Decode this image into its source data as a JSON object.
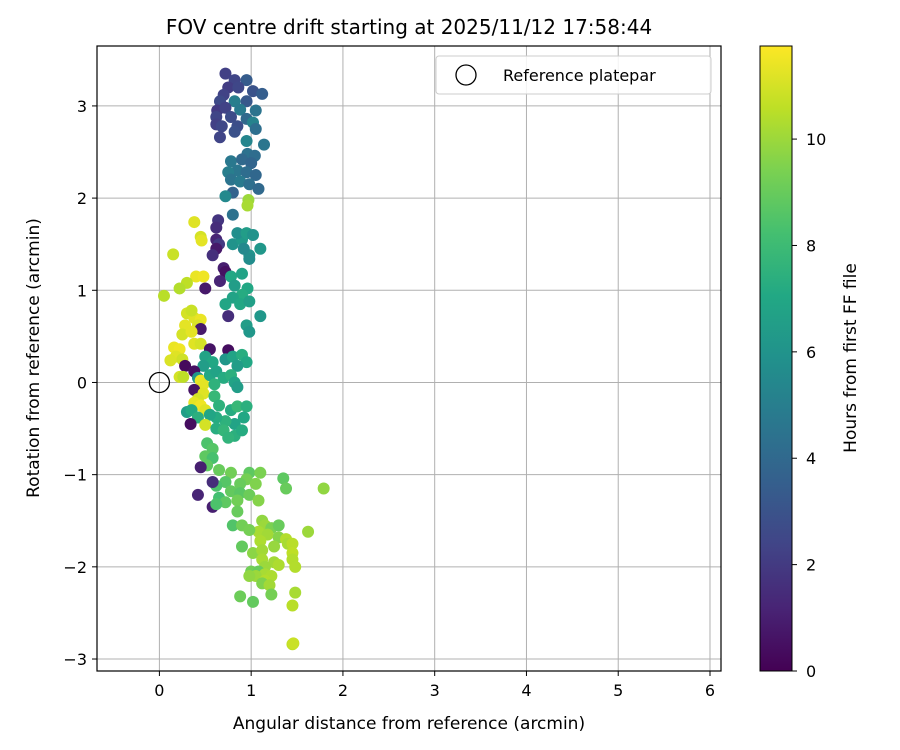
{
  "chart_data": {
    "type": "scatter",
    "title": "FOV centre drift starting at 2025/11/12 17:58:44",
    "xlabel": "Angular distance from reference (arcmin)",
    "ylabel": "Rotation from reference (arcmin)",
    "xlim": [
      -0.68,
      6.12
    ],
    "ylim": [
      -3.13,
      3.65
    ],
    "xticks": [
      0,
      1,
      2,
      3,
      4,
      5,
      6
    ],
    "yticks": [
      -3,
      -2,
      -1,
      0,
      1,
      2,
      3
    ],
    "grid": true,
    "legend": {
      "placement": "top-right",
      "entries": [
        "Reference platepar"
      ]
    },
    "reference_point": {
      "x": 0,
      "y": 0,
      "label": "Reference platepar"
    },
    "colorbar": {
      "label": "Hours from first FF file",
      "colormap": "viridis",
      "range": [
        0,
        11.75
      ],
      "ticks": [
        0,
        2,
        4,
        6,
        8,
        10
      ]
    },
    "points": [
      {
        "x": 0.72,
        "y": 3.35,
        "c": 2.2
      },
      {
        "x": 0.82,
        "y": 3.28,
        "c": 2.4
      },
      {
        "x": 0.95,
        "y": 3.28,
        "c": 3.4
      },
      {
        "x": 0.75,
        "y": 3.2,
        "c": 2.1
      },
      {
        "x": 0.86,
        "y": 3.2,
        "c": 2.5
      },
      {
        "x": 1.02,
        "y": 3.16,
        "c": 3.0
      },
      {
        "x": 1.12,
        "y": 3.13,
        "c": 3.5
      },
      {
        "x": 0.7,
        "y": 3.12,
        "c": 2.3
      },
      {
        "x": 0.66,
        "y": 3.05,
        "c": 2.6
      },
      {
        "x": 0.82,
        "y": 3.05,
        "c": 5.0
      },
      {
        "x": 0.95,
        "y": 3.05,
        "c": 3.2
      },
      {
        "x": 0.63,
        "y": 2.95,
        "c": 2.0
      },
      {
        "x": 0.72,
        "y": 2.98,
        "c": 2.3
      },
      {
        "x": 0.88,
        "y": 2.96,
        "c": 4.8
      },
      {
        "x": 1.05,
        "y": 2.95,
        "c": 4.5
      },
      {
        "x": 0.62,
        "y": 2.88,
        "c": 2.4
      },
      {
        "x": 0.78,
        "y": 2.88,
        "c": 2.7
      },
      {
        "x": 0.95,
        "y": 2.86,
        "c": 4.0
      },
      {
        "x": 1.02,
        "y": 2.82,
        "c": 5.2
      },
      {
        "x": 0.62,
        "y": 2.8,
        "c": 2.2
      },
      {
        "x": 0.68,
        "y": 2.78,
        "c": 2.5
      },
      {
        "x": 0.85,
        "y": 2.78,
        "c": 2.8
      },
      {
        "x": 1.05,
        "y": 2.75,
        "c": 4.3
      },
      {
        "x": 0.82,
        "y": 2.72,
        "c": 2.9
      },
      {
        "x": 0.66,
        "y": 2.66,
        "c": 2.4
      },
      {
        "x": 0.95,
        "y": 2.62,
        "c": 5.3
      },
      {
        "x": 1.14,
        "y": 2.58,
        "c": 4.6
      },
      {
        "x": 0.96,
        "y": 2.48,
        "c": 4.4
      },
      {
        "x": 1.04,
        "y": 2.46,
        "c": 4.2
      },
      {
        "x": 0.78,
        "y": 2.4,
        "c": 4.7
      },
      {
        "x": 0.9,
        "y": 2.42,
        "c": 4.0
      },
      {
        "x": 1.0,
        "y": 2.38,
        "c": 3.8
      },
      {
        "x": 0.85,
        "y": 2.3,
        "c": 4.6
      },
      {
        "x": 0.75,
        "y": 2.28,
        "c": 5.0
      },
      {
        "x": 0.95,
        "y": 2.28,
        "c": 4.2
      },
      {
        "x": 1.05,
        "y": 2.25,
        "c": 3.9
      },
      {
        "x": 0.78,
        "y": 2.2,
        "c": 4.5
      },
      {
        "x": 0.88,
        "y": 2.18,
        "c": 4.8
      },
      {
        "x": 0.98,
        "y": 2.15,
        "c": 4.3
      },
      {
        "x": 1.08,
        "y": 2.1,
        "c": 4.0
      },
      {
        "x": 0.8,
        "y": 2.06,
        "c": 3.7
      },
      {
        "x": 0.72,
        "y": 2.02,
        "c": 5.5
      },
      {
        "x": 0.97,
        "y": 1.98,
        "c": 10.0
      },
      {
        "x": 0.96,
        "y": 1.92,
        "c": 10.2
      },
      {
        "x": 0.8,
        "y": 1.82,
        "c": 4.4
      },
      {
        "x": 0.64,
        "y": 1.76,
        "c": 1.8
      },
      {
        "x": 0.62,
        "y": 1.68,
        "c": 1.5
      },
      {
        "x": 0.38,
        "y": 1.74,
        "c": 11.2
      },
      {
        "x": 0.45,
        "y": 1.58,
        "c": 11.0
      },
      {
        "x": 0.46,
        "y": 1.54,
        "c": 11.3
      },
      {
        "x": 0.62,
        "y": 1.55,
        "c": 1.2
      },
      {
        "x": 0.65,
        "y": 1.5,
        "c": 2.0
      },
      {
        "x": 0.62,
        "y": 1.45,
        "c": 0.8
      },
      {
        "x": 0.8,
        "y": 1.5,
        "c": 6.0
      },
      {
        "x": 0.9,
        "y": 1.55,
        "c": 6.3
      },
      {
        "x": 0.85,
        "y": 1.62,
        "c": 5.8
      },
      {
        "x": 0.95,
        "y": 1.62,
        "c": 6.5
      },
      {
        "x": 1.02,
        "y": 1.6,
        "c": 6.0
      },
      {
        "x": 1.1,
        "y": 1.45,
        "c": 6.2
      },
      {
        "x": 0.98,
        "y": 1.38,
        "c": 6.0
      },
      {
        "x": 0.92,
        "y": 1.45,
        "c": 5.5
      },
      {
        "x": 0.98,
        "y": 1.34,
        "c": 5.7
      },
      {
        "x": 0.15,
        "y": 1.39,
        "c": 10.8
      },
      {
        "x": 0.58,
        "y": 1.38,
        "c": 1.6
      },
      {
        "x": 0.7,
        "y": 1.24,
        "c": 1.0
      },
      {
        "x": 0.72,
        "y": 1.2,
        "c": 0.5
      },
      {
        "x": 0.78,
        "y": 1.15,
        "c": 7.0
      },
      {
        "x": 0.66,
        "y": 1.1,
        "c": 1.2
      },
      {
        "x": 0.9,
        "y": 1.18,
        "c": 6.8
      },
      {
        "x": 0.82,
        "y": 1.05,
        "c": 6.5
      },
      {
        "x": 0.96,
        "y": 1.02,
        "c": 7.0
      },
      {
        "x": 0.9,
        "y": 0.95,
        "c": 7.2
      },
      {
        "x": 0.8,
        "y": 0.92,
        "c": 6.8
      },
      {
        "x": 0.72,
        "y": 0.85,
        "c": 6.9
      },
      {
        "x": 0.88,
        "y": 0.85,
        "c": 7.0
      },
      {
        "x": 0.98,
        "y": 0.88,
        "c": 6.6
      },
      {
        "x": 1.1,
        "y": 0.72,
        "c": 6.2
      },
      {
        "x": 0.75,
        "y": 0.72,
        "c": 1.5
      },
      {
        "x": 0.95,
        "y": 0.62,
        "c": 6.5
      },
      {
        "x": 0.98,
        "y": 0.55,
        "c": 6.2
      },
      {
        "x": 0.4,
        "y": 1.15,
        "c": 11.4
      },
      {
        "x": 0.3,
        "y": 1.08,
        "c": 10.6
      },
      {
        "x": 0.48,
        "y": 1.15,
        "c": 11.5
      },
      {
        "x": 0.22,
        "y": 1.02,
        "c": 10.4
      },
      {
        "x": 0.05,
        "y": 0.94,
        "c": 10.5
      },
      {
        "x": 0.5,
        "y": 1.02,
        "c": 0.8
      },
      {
        "x": 0.3,
        "y": 0.75,
        "c": 11.0
      },
      {
        "x": 0.38,
        "y": 0.7,
        "c": 11.2
      },
      {
        "x": 0.45,
        "y": 0.68,
        "c": 11.4
      },
      {
        "x": 0.35,
        "y": 0.78,
        "c": 10.8
      },
      {
        "x": 0.28,
        "y": 0.62,
        "c": 11.3
      },
      {
        "x": 0.42,
        "y": 0.62,
        "c": 11.1
      },
      {
        "x": 0.45,
        "y": 0.58,
        "c": 0.8
      },
      {
        "x": 0.25,
        "y": 0.52,
        "c": 11.0
      },
      {
        "x": 0.35,
        "y": 0.55,
        "c": 11.3
      },
      {
        "x": 0.38,
        "y": 0.42,
        "c": 11.2
      },
      {
        "x": 0.45,
        "y": 0.42,
        "c": 11.0
      },
      {
        "x": 0.16,
        "y": 0.38,
        "c": 11.4
      },
      {
        "x": 0.22,
        "y": 0.36,
        "c": 11.5
      },
      {
        "x": 0.18,
        "y": 0.28,
        "c": 11.2
      },
      {
        "x": 0.25,
        "y": 0.25,
        "c": 10.9
      },
      {
        "x": 0.12,
        "y": 0.24,
        "c": 11.1
      },
      {
        "x": 0.55,
        "y": 0.36,
        "c": 0.6
      },
      {
        "x": 0.75,
        "y": 0.35,
        "c": 0.4
      },
      {
        "x": 0.5,
        "y": 0.28,
        "c": 6.8
      },
      {
        "x": 0.58,
        "y": 0.22,
        "c": 7.0
      },
      {
        "x": 0.48,
        "y": 0.18,
        "c": 6.5
      },
      {
        "x": 0.72,
        "y": 0.25,
        "c": 6.2
      },
      {
        "x": 0.8,
        "y": 0.28,
        "c": 6.8
      },
      {
        "x": 0.9,
        "y": 0.3,
        "c": 7.3
      },
      {
        "x": 0.95,
        "y": 0.22,
        "c": 7.0
      },
      {
        "x": 0.85,
        "y": 0.18,
        "c": 6.5
      },
      {
        "x": 0.28,
        "y": 0.18,
        "c": 0.3
      },
      {
        "x": 0.38,
        "y": 0.12,
        "c": 0.5
      },
      {
        "x": 0.22,
        "y": 0.06,
        "c": 11.0
      },
      {
        "x": 0.26,
        "y": 0.06,
        "c": 10.6
      },
      {
        "x": 0.42,
        "y": 0.05,
        "c": 6.2
      },
      {
        "x": 0.45,
        "y": 0.02,
        "c": 11.4
      },
      {
        "x": 0.48,
        "y": -0.02,
        "c": 11.3
      },
      {
        "x": 0.55,
        "y": 0.08,
        "c": 7.0
      },
      {
        "x": 0.62,
        "y": 0.12,
        "c": 6.8
      },
      {
        "x": 0.7,
        "y": 0.05,
        "c": 7.2
      },
      {
        "x": 0.78,
        "y": 0.08,
        "c": 7.4
      },
      {
        "x": 0.82,
        "y": 0.0,
        "c": 6.8
      },
      {
        "x": 0.85,
        "y": -0.05,
        "c": 6.5
      },
      {
        "x": 0.6,
        "y": -0.02,
        "c": 7.5
      },
      {
        "x": 0.38,
        "y": -0.08,
        "c": 0.6
      },
      {
        "x": 0.48,
        "y": -0.12,
        "c": 11.2
      },
      {
        "x": 0.42,
        "y": -0.18,
        "c": 11.0
      },
      {
        "x": 0.38,
        "y": -0.22,
        "c": 11.3
      },
      {
        "x": 0.45,
        "y": -0.25,
        "c": 11.5
      },
      {
        "x": 0.5,
        "y": -0.3,
        "c": 11.2
      },
      {
        "x": 0.6,
        "y": -0.15,
        "c": 7.8
      },
      {
        "x": 0.65,
        "y": -0.25,
        "c": 7.5
      },
      {
        "x": 0.78,
        "y": -0.3,
        "c": 7.2
      },
      {
        "x": 0.85,
        "y": -0.26,
        "c": 7.8
      },
      {
        "x": 0.95,
        "y": -0.26,
        "c": 7.4
      },
      {
        "x": 0.92,
        "y": -0.38,
        "c": 7.0
      },
      {
        "x": 0.82,
        "y": -0.45,
        "c": 6.8
      },
      {
        "x": 0.72,
        "y": -0.42,
        "c": 7.5
      },
      {
        "x": 0.62,
        "y": -0.38,
        "c": 7.2
      },
      {
        "x": 0.55,
        "y": -0.35,
        "c": 6.9
      },
      {
        "x": 0.3,
        "y": -0.32,
        "c": 6.5
      },
      {
        "x": 0.35,
        "y": -0.3,
        "c": 7.1
      },
      {
        "x": 0.42,
        "y": -0.38,
        "c": 7.4
      },
      {
        "x": 0.34,
        "y": -0.45,
        "c": 0.4
      },
      {
        "x": 0.5,
        "y": -0.46,
        "c": 11.0
      },
      {
        "x": 0.62,
        "y": -0.5,
        "c": 7.3
      },
      {
        "x": 0.7,
        "y": -0.52,
        "c": 7.7
      },
      {
        "x": 0.82,
        "y": -0.58,
        "c": 7.4
      },
      {
        "x": 0.9,
        "y": -0.52,
        "c": 7.2
      },
      {
        "x": 0.75,
        "y": -0.6,
        "c": 7.6
      },
      {
        "x": 0.52,
        "y": -0.66,
        "c": 8.4
      },
      {
        "x": 0.58,
        "y": -0.72,
        "c": 8.6
      },
      {
        "x": 0.5,
        "y": -0.8,
        "c": 8.8
      },
      {
        "x": 0.58,
        "y": -0.82,
        "c": 8.3
      },
      {
        "x": 0.52,
        "y": -0.9,
        "c": 8.8
      },
      {
        "x": 0.45,
        "y": -0.92,
        "c": 1.0
      },
      {
        "x": 0.65,
        "y": -0.95,
        "c": 9.0
      },
      {
        "x": 0.78,
        "y": -0.98,
        "c": 9.2
      },
      {
        "x": 0.98,
        "y": -0.98,
        "c": 8.8
      },
      {
        "x": 1.1,
        "y": -0.98,
        "c": 9.4
      },
      {
        "x": 1.35,
        "y": -1.04,
        "c": 8.8
      },
      {
        "x": 0.95,
        "y": -1.05,
        "c": 9.3
      },
      {
        "x": 0.88,
        "y": -1.1,
        "c": 9.0
      },
      {
        "x": 0.72,
        "y": -1.08,
        "c": 8.6
      },
      {
        "x": 0.62,
        "y": -1.12,
        "c": 8.4
      },
      {
        "x": 0.58,
        "y": -1.08,
        "c": 1.5
      },
      {
        "x": 0.78,
        "y": -1.18,
        "c": 8.9
      },
      {
        "x": 0.88,
        "y": -1.2,
        "c": 8.7
      },
      {
        "x": 0.98,
        "y": -1.22,
        "c": 9.1
      },
      {
        "x": 1.05,
        "y": -1.1,
        "c": 9.5
      },
      {
        "x": 1.38,
        "y": -1.15,
        "c": 9.0
      },
      {
        "x": 1.79,
        "y": -1.15,
        "c": 9.8
      },
      {
        "x": 0.42,
        "y": -1.22,
        "c": 1.2
      },
      {
        "x": 0.65,
        "y": -1.25,
        "c": 8.2
      },
      {
        "x": 0.72,
        "y": -1.3,
        "c": 8.8
      },
      {
        "x": 0.85,
        "y": -1.28,
        "c": 9.2
      },
      {
        "x": 1.08,
        "y": -1.28,
        "c": 9.6
      },
      {
        "x": 0.58,
        "y": -1.35,
        "c": 1.0
      },
      {
        "x": 0.62,
        "y": -1.32,
        "c": 8.4
      },
      {
        "x": 0.85,
        "y": -1.4,
        "c": 9.0
      },
      {
        "x": 0.8,
        "y": -1.55,
        "c": 8.5
      },
      {
        "x": 0.9,
        "y": -1.55,
        "c": 9.2
      },
      {
        "x": 1.12,
        "y": -1.5,
        "c": 9.8
      },
      {
        "x": 1.15,
        "y": -1.55,
        "c": 10.0
      },
      {
        "x": 1.22,
        "y": -1.58,
        "c": 9.4
      },
      {
        "x": 1.3,
        "y": -1.55,
        "c": 9.0
      },
      {
        "x": 1.08,
        "y": -1.62,
        "c": 10.2
      },
      {
        "x": 1.18,
        "y": -1.65,
        "c": 10.1
      },
      {
        "x": 1.3,
        "y": -1.68,
        "c": 9.6
      },
      {
        "x": 1.38,
        "y": -1.7,
        "c": 10.4
      },
      {
        "x": 1.4,
        "y": -1.75,
        "c": 10.2
      },
      {
        "x": 1.45,
        "y": -1.75,
        "c": 10.5
      },
      {
        "x": 1.62,
        "y": -1.62,
        "c": 10.0
      },
      {
        "x": 0.98,
        "y": -1.6,
        "c": 9.3
      },
      {
        "x": 1.1,
        "y": -1.72,
        "c": 10.3
      },
      {
        "x": 1.25,
        "y": -1.78,
        "c": 9.9
      },
      {
        "x": 0.9,
        "y": -1.78,
        "c": 8.9
      },
      {
        "x": 1.02,
        "y": -1.85,
        "c": 9.7
      },
      {
        "x": 1.12,
        "y": -1.82,
        "c": 10.1
      },
      {
        "x": 1.45,
        "y": -1.85,
        "c": 10.6
      },
      {
        "x": 1.45,
        "y": -1.92,
        "c": 10.4
      },
      {
        "x": 1.12,
        "y": -1.92,
        "c": 10.2
      },
      {
        "x": 1.25,
        "y": -1.95,
        "c": 10.1
      },
      {
        "x": 1.3,
        "y": -1.98,
        "c": 10.3
      },
      {
        "x": 1.15,
        "y": -2.0,
        "c": 10.0
      },
      {
        "x": 1.48,
        "y": -2.0,
        "c": 10.4
      },
      {
        "x": 1.0,
        "y": -2.05,
        "c": 9.2
      },
      {
        "x": 1.08,
        "y": -2.05,
        "c": 9.0
      },
      {
        "x": 1.15,
        "y": -2.08,
        "c": 10.2
      },
      {
        "x": 1.22,
        "y": -2.1,
        "c": 10.3
      },
      {
        "x": 1.05,
        "y": -2.1,
        "c": 10.0
      },
      {
        "x": 1.15,
        "y": -2.15,
        "c": 10.4
      },
      {
        "x": 0.98,
        "y": -2.1,
        "c": 9.8
      },
      {
        "x": 1.12,
        "y": -2.18,
        "c": 9.5
      },
      {
        "x": 1.2,
        "y": -2.2,
        "c": 10.1
      },
      {
        "x": 1.22,
        "y": -2.3,
        "c": 9.3
      },
      {
        "x": 1.48,
        "y": -2.28,
        "c": 10.2
      },
      {
        "x": 0.88,
        "y": -2.32,
        "c": 9.1
      },
      {
        "x": 1.02,
        "y": -2.38,
        "c": 8.9
      },
      {
        "x": 1.45,
        "y": -2.42,
        "c": 10.5
      },
      {
        "x": 1.45,
        "y": -2.84,
        "c": 10.6
      },
      {
        "x": 1.46,
        "y": -2.83,
        "c": 10.8
      }
    ]
  }
}
